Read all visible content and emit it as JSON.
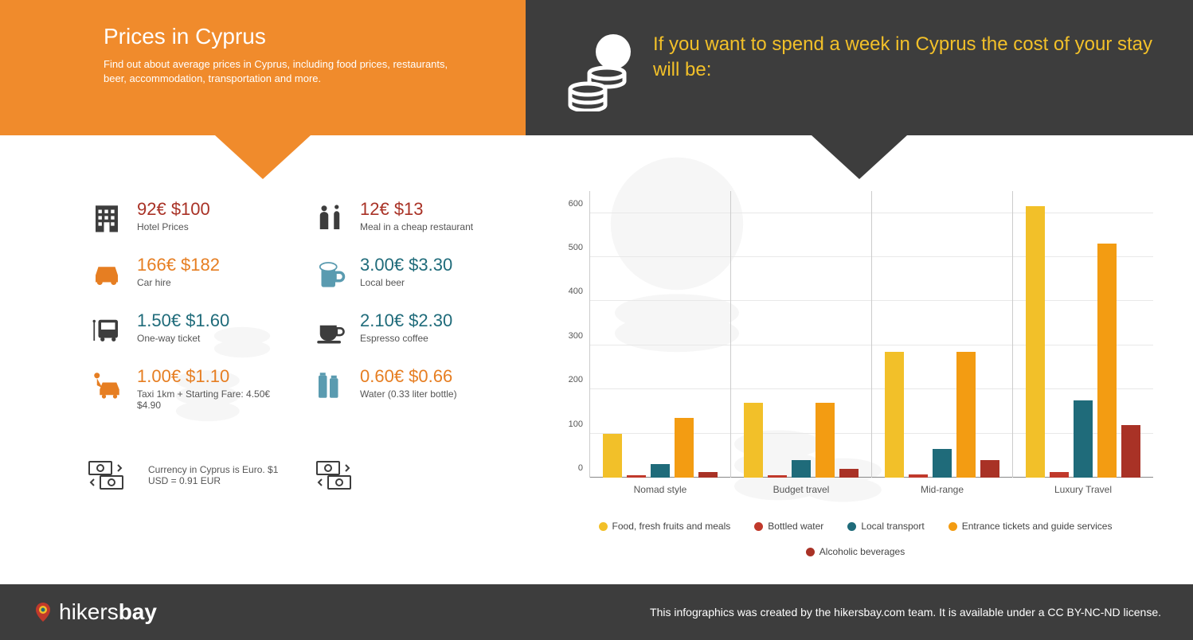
{
  "colors": {
    "orange_banner": "#f08b2c",
    "dark_banner": "#3d3d3d",
    "accent_yellow": "#f2c029",
    "price_red": "#a93226",
    "price_orange": "#e67e22",
    "price_blue": "#1f6b7a",
    "icon_dark": "#3d3d3d",
    "icon_orange": "#e67e22",
    "icon_blue": "#5a9bb0"
  },
  "header_left": {
    "title": "Prices in Cyprus",
    "subtitle": "Find out about average prices in Cyprus, including food prices, restaurants, beer, accommodation, transportation and more."
  },
  "header_right": {
    "title": "If you want to spend a week in Cyprus the cost of your stay will be:"
  },
  "prices": {
    "col1": [
      {
        "color": "price_red",
        "value": "92€ $100",
        "label": "Hotel Prices",
        "icon": "hotel",
        "icon_color": "#3d3d3d"
      },
      {
        "color": "price_orange",
        "value": "166€ $182",
        "label": "Car hire",
        "icon": "car",
        "icon_color": "#e67e22"
      },
      {
        "color": "price_blue",
        "value": "1.50€ $1.60",
        "label": "One-way ticket",
        "icon": "bus",
        "icon_color": "#3d3d3d"
      },
      {
        "color": "price_orange",
        "value": "1.00€ $1.10",
        "label": "Taxi 1km + Starting Fare: 4.50€ $4.90",
        "icon": "taxi",
        "icon_color": "#e67e22"
      }
    ],
    "col2": [
      {
        "color": "price_red",
        "value": "12€ $13",
        "label": "Meal in a cheap restaurant",
        "icon": "concierge",
        "icon_color": "#3d3d3d"
      },
      {
        "color": "price_blue",
        "value": "3.00€ $3.30",
        "label": "Local beer",
        "icon": "beer",
        "icon_color": "#5a9bb0"
      },
      {
        "color": "price_blue",
        "value": "2.10€ $2.30",
        "label": "Espresso coffee",
        "icon": "coffee",
        "icon_color": "#3d3d3d"
      },
      {
        "color": "price_orange",
        "value": "0.60€ $0.66",
        "label": "Water (0.33 liter bottle)",
        "icon": "water",
        "icon_color": "#5a9bb0"
      }
    ]
  },
  "currency_note": "Currency in Cyprus is Euro. $1 USD = 0.91 EUR",
  "chart": {
    "ymax": 650,
    "yticks": [
      0,
      100,
      200,
      300,
      400,
      500,
      600
    ],
    "categories": [
      "Nomad style",
      "Budget travel",
      "Mid-range",
      "Luxury Travel"
    ],
    "series": [
      {
        "name": "Food, fresh fruits and meals",
        "color": "#f2c029",
        "values": [
          100,
          170,
          285,
          615
        ]
      },
      {
        "name": "Bottled water",
        "color": "#c0392b",
        "values": [
          5,
          6,
          8,
          12
        ]
      },
      {
        "name": "Local transport",
        "color": "#1f6b7a",
        "values": [
          30,
          40,
          65,
          175
        ]
      },
      {
        "name": "Entrance tickets and guide services",
        "color": "#f39c12",
        "values": [
          135,
          170,
          285,
          530
        ]
      },
      {
        "name": "Alcoholic beverages",
        "color": "#a93226",
        "values": [
          12,
          20,
          40,
          120
        ]
      }
    ]
  },
  "footer": {
    "brand_prefix": "hikers",
    "brand_bold": "bay",
    "credit": "This infographics was created by the hikersbay.com team. It is available under a CC BY-NC-ND license."
  }
}
